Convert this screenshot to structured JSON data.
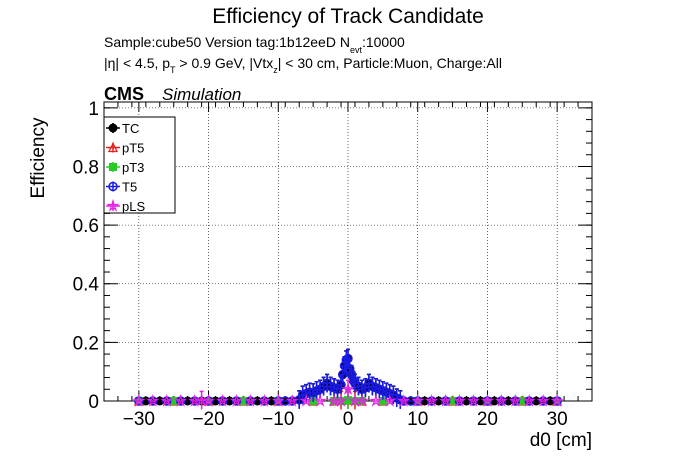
{
  "header": {
    "title": "Efficiency of Track Candidate",
    "info_line1": "Sample:cube50   Version tag:1b12eeD  N",
    "info_line1_sub": "evt",
    "info_line1_tail": ":10000",
    "info_line2_a": "|η| < 4.5, p",
    "info_line2_sub1": "T",
    "info_line2_b": " > 0.9 GeV, |Vtx",
    "info_line2_sub2": "z",
    "info_line2_c": "| < 30 cm, Particle:Muon, Charge:All",
    "cms_label": "CMS",
    "simulation_label": "Simulation"
  },
  "chart_data": {
    "type": "scatter",
    "title": "Efficiency of Track Candidate",
    "xlabel": "d0 [cm]",
    "ylabel": "Efficiency",
    "xlim": [
      -35,
      35
    ],
    "ylim": [
      0,
      1.02
    ],
    "xticks": [
      -30,
      -20,
      -10,
      0,
      10,
      20,
      30
    ],
    "xtick_labels": [
      "−30",
      "−20",
      "−10",
      "0",
      "10",
      "20",
      "30"
    ],
    "yticks": [
      0,
      0.2,
      0.4,
      0.6,
      0.8,
      1
    ],
    "ytick_labels": [
      "0",
      "0.2",
      "0.4",
      "0.6",
      "0.8",
      "1"
    ],
    "grid": true,
    "legend_position": "top-left",
    "series": [
      {
        "name": "TC",
        "color": "#000000",
        "marker": "circle",
        "points": [
          [
            -30,
            0
          ],
          [
            -29,
            0
          ],
          [
            -28,
            0
          ],
          [
            -27,
            0
          ],
          [
            -26,
            0
          ],
          [
            -25,
            0
          ],
          [
            -24,
            0
          ],
          [
            -23,
            0
          ],
          [
            -22,
            0
          ],
          [
            -21,
            0
          ],
          [
            -20,
            0
          ],
          [
            -19,
            0
          ],
          [
            -18,
            0
          ],
          [
            -17,
            0
          ],
          [
            -16,
            0
          ],
          [
            -15,
            0
          ],
          [
            -14,
            0
          ],
          [
            -13,
            0
          ],
          [
            -12,
            0
          ],
          [
            -11,
            0
          ],
          [
            -10,
            0
          ],
          [
            -9,
            0
          ],
          [
            -8,
            0
          ],
          [
            -7,
            0.004
          ],
          [
            -6.5,
            0.02
          ],
          [
            -6,
            0.025
          ],
          [
            -5.5,
            0.03
          ],
          [
            -5,
            0.028
          ],
          [
            -4.5,
            0.035
          ],
          [
            -4,
            0.04
          ],
          [
            -3.5,
            0.05
          ],
          [
            -3,
            0.06
          ],
          [
            -2.5,
            0.05
          ],
          [
            -2,
            0.045
          ],
          [
            -1.5,
            0.04
          ],
          [
            -1,
            0.055
          ],
          [
            -0.75,
            0.09
          ],
          [
            -0.5,
            0.12
          ],
          [
            -0.25,
            0.14
          ],
          [
            0,
            0.145
          ],
          [
            0.25,
            0.11
          ],
          [
            0.5,
            0.09
          ],
          [
            0.75,
            0.07
          ],
          [
            1,
            0.06
          ],
          [
            1.5,
            0.05
          ],
          [
            2,
            0.04
          ],
          [
            2.5,
            0.045
          ],
          [
            3,
            0.06
          ],
          [
            3.5,
            0.05
          ],
          [
            4,
            0.045
          ],
          [
            4.5,
            0.04
          ],
          [
            5,
            0.035
          ],
          [
            5.5,
            0.03
          ],
          [
            6,
            0.025
          ],
          [
            6.5,
            0.02
          ],
          [
            7,
            0.01
          ],
          [
            7.5,
            0.004
          ],
          [
            8,
            0
          ],
          [
            9,
            0
          ],
          [
            10,
            0
          ],
          [
            11,
            0
          ],
          [
            12,
            0
          ],
          [
            13,
            0
          ],
          [
            14,
            0
          ],
          [
            15,
            0
          ],
          [
            16,
            0
          ],
          [
            17,
            0
          ],
          [
            18,
            0
          ],
          [
            19,
            0
          ],
          [
            20,
            0
          ],
          [
            21,
            0
          ],
          [
            22,
            0
          ],
          [
            23,
            0
          ],
          [
            24,
            0
          ],
          [
            25,
            0
          ],
          [
            26,
            0
          ],
          [
            27,
            0
          ],
          [
            28,
            0
          ],
          [
            29,
            0
          ],
          [
            30,
            0
          ]
        ]
      },
      {
        "name": "pT5",
        "color": "#e8201a",
        "marker": "triangle-open",
        "points": [
          [
            -30,
            0
          ],
          [
            -25,
            0
          ],
          [
            -20,
            0
          ],
          [
            -15,
            0
          ],
          [
            -10,
            0
          ],
          [
            -5,
            0
          ],
          [
            -2,
            0
          ],
          [
            -1,
            0.002
          ],
          [
            0,
            0.004
          ],
          [
            1,
            0.002
          ],
          [
            2,
            0
          ],
          [
            5,
            0
          ],
          [
            10,
            0
          ],
          [
            15,
            0
          ],
          [
            20,
            0
          ],
          [
            25,
            0
          ],
          [
            30,
            0
          ]
        ]
      },
      {
        "name": "pT3",
        "color": "#22cc22",
        "marker": "square",
        "points": [
          [
            -30,
            0
          ],
          [
            -25,
            0
          ],
          [
            -20,
            0
          ],
          [
            -15,
            0
          ],
          [
            -10,
            0
          ],
          [
            -5,
            0
          ],
          [
            -2,
            0
          ],
          [
            -1,
            0
          ],
          [
            0,
            0.003
          ],
          [
            1,
            0
          ],
          [
            2,
            0
          ],
          [
            5,
            0
          ],
          [
            10,
            0
          ],
          [
            15,
            0
          ],
          [
            20,
            0
          ],
          [
            25,
            0
          ],
          [
            30,
            0
          ]
        ]
      },
      {
        "name": "T5",
        "color": "#1a1ae6",
        "marker": "circle-open",
        "points": [
          [
            -30,
            0
          ],
          [
            -28,
            0
          ],
          [
            -26,
            0
          ],
          [
            -24,
            0
          ],
          [
            -22,
            0
          ],
          [
            -20,
            0
          ],
          [
            -18,
            0
          ],
          [
            -16,
            0
          ],
          [
            -14,
            0
          ],
          [
            -12,
            0
          ],
          [
            -10,
            0
          ],
          [
            -9,
            0
          ],
          [
            -8,
            0
          ],
          [
            -7,
            0.004
          ],
          [
            -6.5,
            0.02
          ],
          [
            -6,
            0.025
          ],
          [
            -5.5,
            0.03
          ],
          [
            -5,
            0.028
          ],
          [
            -4.5,
            0.035
          ],
          [
            -4,
            0.04
          ],
          [
            -3.5,
            0.05
          ],
          [
            -3,
            0.06
          ],
          [
            -2.5,
            0.05
          ],
          [
            -2,
            0.045
          ],
          [
            -1.5,
            0.04
          ],
          [
            -1,
            0.055
          ],
          [
            -0.75,
            0.09
          ],
          [
            -0.5,
            0.12
          ],
          [
            -0.25,
            0.14
          ],
          [
            0,
            0.145
          ],
          [
            0.25,
            0.11
          ],
          [
            0.5,
            0.09
          ],
          [
            0.75,
            0.07
          ],
          [
            1,
            0.06
          ],
          [
            1.5,
            0.05
          ],
          [
            2,
            0.04
          ],
          [
            2.5,
            0.045
          ],
          [
            3,
            0.06
          ],
          [
            3.5,
            0.05
          ],
          [
            4,
            0.045
          ],
          [
            4.5,
            0.04
          ],
          [
            5,
            0.035
          ],
          [
            5.5,
            0.03
          ],
          [
            6,
            0.025
          ],
          [
            6.5,
            0.02
          ],
          [
            7,
            0.01
          ],
          [
            7.5,
            0.004
          ],
          [
            8,
            0
          ],
          [
            9,
            0
          ],
          [
            10,
            0
          ],
          [
            12,
            0
          ],
          [
            14,
            0
          ],
          [
            16,
            0
          ],
          [
            18,
            0
          ],
          [
            20,
            0
          ],
          [
            22,
            0
          ],
          [
            24,
            0
          ],
          [
            26,
            0
          ],
          [
            28,
            0
          ],
          [
            30,
            0
          ]
        ]
      },
      {
        "name": "pLS",
        "color": "#e620e6",
        "marker": "star",
        "points": [
          [
            -30,
            0
          ],
          [
            -28,
            0
          ],
          [
            -26,
            0
          ],
          [
            -24,
            0
          ],
          [
            -22,
            0
          ],
          [
            -21,
            0.002
          ],
          [
            -20,
            0
          ],
          [
            -18,
            0
          ],
          [
            -16,
            0
          ],
          [
            -14,
            0
          ],
          [
            -12,
            0
          ],
          [
            -10,
            0
          ],
          [
            -8,
            0
          ],
          [
            -6,
            0
          ],
          [
            -4,
            0
          ],
          [
            -2,
            0
          ],
          [
            -1,
            0
          ],
          [
            0,
            0.04
          ],
          [
            1,
            0
          ],
          [
            2,
            0
          ],
          [
            4,
            0
          ],
          [
            6,
            0
          ],
          [
            8,
            0
          ],
          [
            10,
            0
          ],
          [
            12,
            0
          ],
          [
            14,
            0
          ],
          [
            16,
            0
          ],
          [
            18,
            0
          ],
          [
            20,
            0
          ],
          [
            22,
            0
          ],
          [
            24,
            0
          ],
          [
            26,
            0
          ],
          [
            28,
            0
          ],
          [
            30,
            0
          ]
        ]
      }
    ]
  }
}
